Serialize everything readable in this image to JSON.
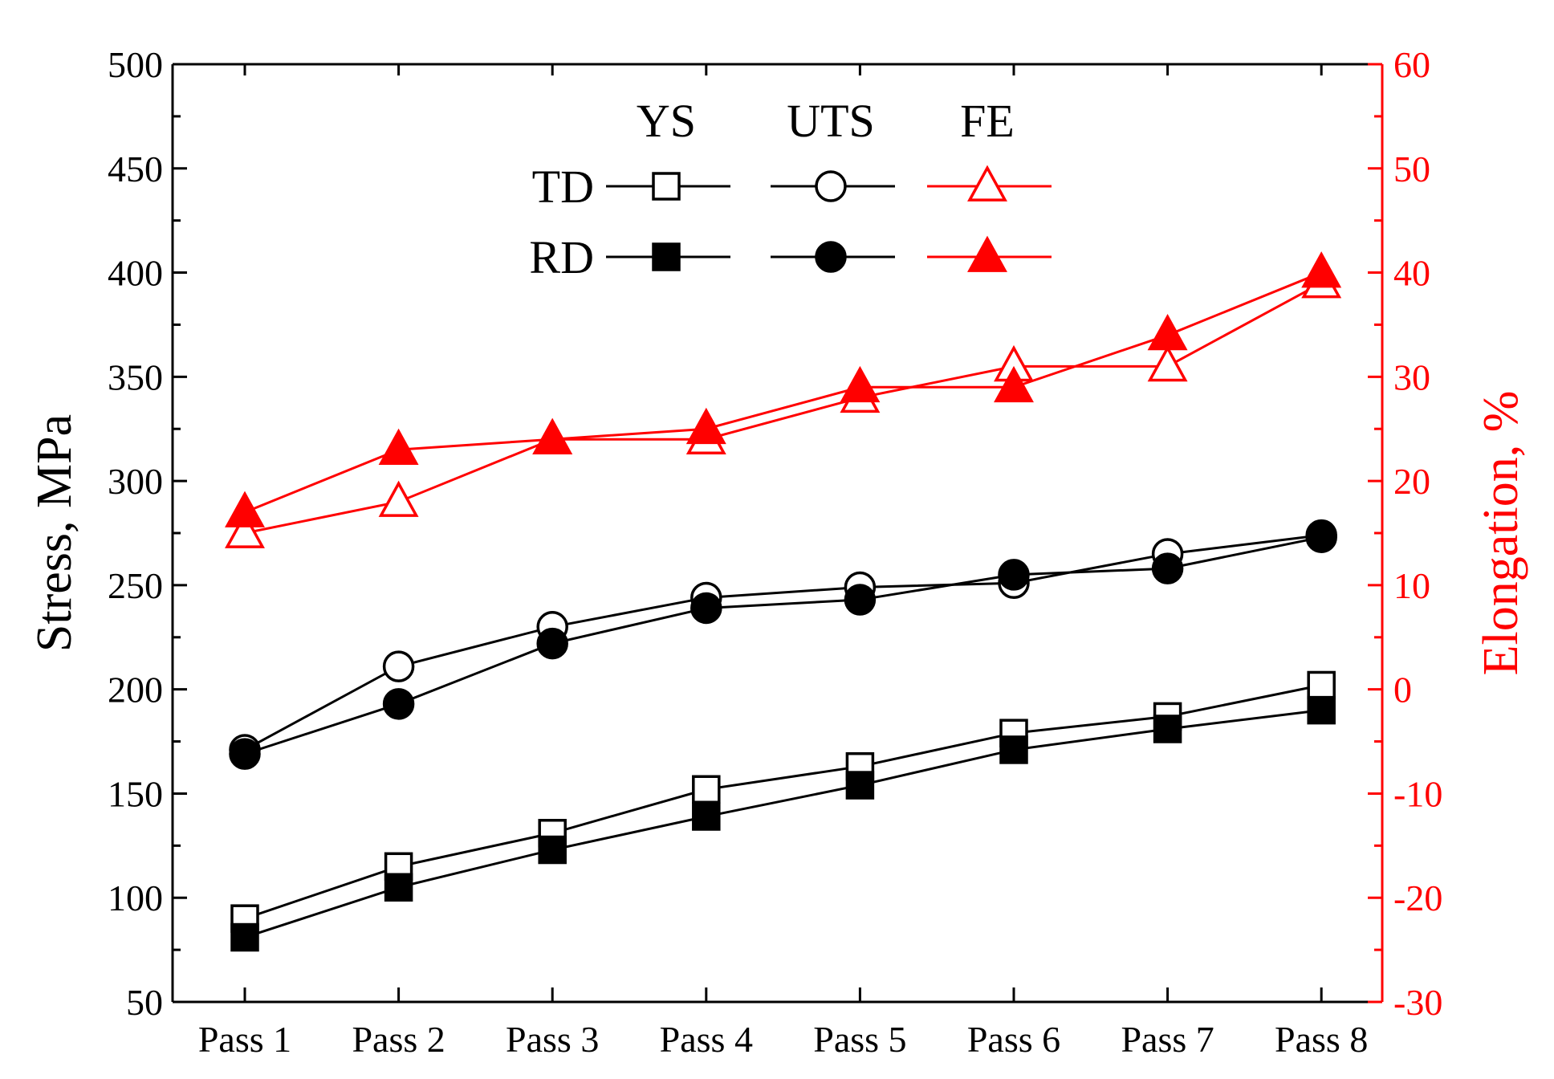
{
  "chart_data": {
    "type": "line",
    "categories": [
      "Pass 1",
      "Pass 2",
      "Pass 3",
      "Pass 4",
      "Pass 5",
      "Pass 6",
      "Pass 7",
      "Pass 8"
    ],
    "y_left": {
      "label": "Stress, MPa",
      "lim": [
        50,
        500
      ],
      "ticks": [
        "50",
        "100",
        "150",
        "200",
        "250",
        "300",
        "350",
        "400",
        "450",
        "500"
      ],
      "tick_values": [
        50,
        100,
        150,
        200,
        250,
        300,
        350,
        400,
        450,
        500
      ]
    },
    "y_right": {
      "label": "Elongation, %",
      "lim": [
        -30,
        60
      ],
      "ticks": [
        "-30",
        "-20",
        "-10",
        "0",
        "10",
        "20",
        "30",
        "40",
        "50",
        "60"
      ],
      "tick_values": [
        -30,
        -20,
        -10,
        0,
        10,
        20,
        30,
        40,
        50,
        60
      ],
      "color": "#ff0000"
    },
    "legend": {
      "columns": [
        "YS",
        "UTS",
        "FE"
      ],
      "rows": [
        "TD",
        "RD"
      ],
      "placement": "top-center"
    },
    "series": [
      {
        "name": "YS TD",
        "axis": "left",
        "marker": "square-open",
        "color": "#000000",
        "values": [
          90,
          115,
          131,
          152,
          163,
          179,
          187,
          202
        ]
      },
      {
        "name": "YS RD",
        "axis": "left",
        "marker": "square-filled",
        "color": "#000000",
        "values": [
          81,
          105,
          123,
          139,
          154,
          171,
          181,
          190
        ]
      },
      {
        "name": "UTS TD",
        "axis": "left",
        "marker": "circle-open",
        "color": "#000000",
        "values": [
          171,
          211,
          230,
          244,
          249,
          251,
          265,
          274
        ]
      },
      {
        "name": "UTS RD",
        "axis": "left",
        "marker": "circle-filled",
        "color": "#000000",
        "values": [
          169,
          193,
          222,
          239,
          243,
          255,
          258,
          273
        ]
      },
      {
        "name": "FE TD",
        "axis": "right",
        "marker": "triangle-open",
        "color": "#ff0000",
        "values": [
          15,
          18,
          24,
          24,
          28,
          31,
          31,
          39
        ]
      },
      {
        "name": "FE RD",
        "axis": "right",
        "marker": "triangle-filled",
        "color": "#ff0000",
        "values": [
          17,
          23,
          24,
          25,
          29,
          29,
          34,
          40
        ]
      }
    ],
    "grid": false
  }
}
